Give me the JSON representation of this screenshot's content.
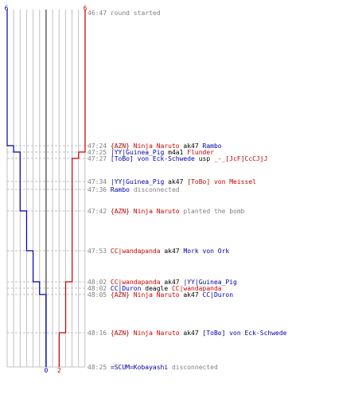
{
  "colors": {
    "red": "#cc0000",
    "blue": "#0000aa",
    "gray": "#808080",
    "grid": "#c0c0c0",
    "gridDark": "#606060"
  },
  "chart_data": {
    "type": "line",
    "series": [
      {
        "team": "blue",
        "counts": [
          6,
          5,
          4,
          4,
          4,
          4,
          3,
          2,
          1,
          1,
          0,
          0
        ],
        "start_label": "6",
        "end_label": "0"
      },
      {
        "team": "red",
        "counts": [
          6,
          6,
          5,
          4,
          4,
          4,
          4,
          4,
          3,
          3,
          3,
          2
        ],
        "start_label": "6",
        "end_label": "2"
      }
    ],
    "ylim": [
      0,
      6
    ]
  },
  "events": [
    {
      "time": "46:47",
      "row": 0,
      "parts": [
        {
          "text": "round started",
          "color": "gray"
        }
      ]
    },
    {
      "time": "47:24",
      "row": 1,
      "parts": [
        {
          "text": "{AZN} Ninja Naruto",
          "color": "red"
        },
        {
          "text": " ak47 ",
          "color": "black"
        },
        {
          "text": "Rambo",
          "color": "blue"
        }
      ]
    },
    {
      "time": "47:25",
      "row": 2,
      "parts": [
        {
          "text": "|YY|Guinea_Pig",
          "color": "blue"
        },
        {
          "text": " m4a1 ",
          "color": "black"
        },
        {
          "text": "Flunder",
          "color": "red"
        }
      ]
    },
    {
      "time": "47:27",
      "row": 3,
      "parts": [
        {
          "text": "[ToBo] von Eck-Schwede",
          "color": "blue"
        },
        {
          "text": " usp ",
          "color": "black"
        },
        {
          "text": "_-_[JcF]CcCJjJ",
          "color": "red"
        }
      ]
    },
    {
      "time": "47:34",
      "row": 4,
      "parts": [
        {
          "text": "|YY|Guinea_Pig",
          "color": "blue"
        },
        {
          "text": " ak47 ",
          "color": "black"
        },
        {
          "text": "[ToBo] von Meissel",
          "color": "red"
        }
      ]
    },
    {
      "time": "47:36",
      "row": 5,
      "parts": [
        {
          "text": "Rambo",
          "color": "blue"
        },
        {
          "text": " disconnected",
          "color": "gray"
        }
      ]
    },
    {
      "time": "47:42",
      "row": 6,
      "parts": [
        {
          "text": "{AZN} Ninja Naruto",
          "color": "red"
        },
        {
          "text": " planted the bomb",
          "color": "gray"
        }
      ]
    },
    {
      "time": "47:53",
      "row": 7,
      "parts": [
        {
          "text": "CC|wandapanda",
          "color": "red"
        },
        {
          "text": " ak47 ",
          "color": "black"
        },
        {
          "text": "Mork von Ork",
          "color": "blue"
        }
      ]
    },
    {
      "time": "48:02",
      "row": 8,
      "parts": [
        {
          "text": "CC|wandapanda",
          "color": "red"
        },
        {
          "text": " ak47 ",
          "color": "black"
        },
        {
          "text": "|YY|Guinea_Pig",
          "color": "blue"
        }
      ]
    },
    {
      "time": "48:02",
      "row": 9,
      "parts": [
        {
          "text": "CC|Duron",
          "color": "blue"
        },
        {
          "text": " deagle ",
          "color": "black"
        },
        {
          "text": "CC|wandapanda",
          "color": "red"
        }
      ]
    },
    {
      "time": "48:05",
      "row": 10,
      "parts": [
        {
          "text": "{AZN} Ninja Naruto",
          "color": "red"
        },
        {
          "text": " ak47 ",
          "color": "black"
        },
        {
          "text": "CC|Duron",
          "color": "blue"
        }
      ]
    },
    {
      "time": "48:16",
      "row": 11,
      "parts": [
        {
          "text": "{AZN} Ninja Naruto",
          "color": "red"
        },
        {
          "text": " ak47 ",
          "color": "black"
        },
        {
          "text": "[ToBo] von Eck-Schwede",
          "color": "blue"
        }
      ]
    },
    {
      "time": "48:25",
      "row": 12,
      "parts": [
        {
          "text": "=SCUM=Kobayashi",
          "color": "blue"
        },
        {
          "text": " disconnected",
          "color": "gray"
        }
      ]
    }
  ]
}
